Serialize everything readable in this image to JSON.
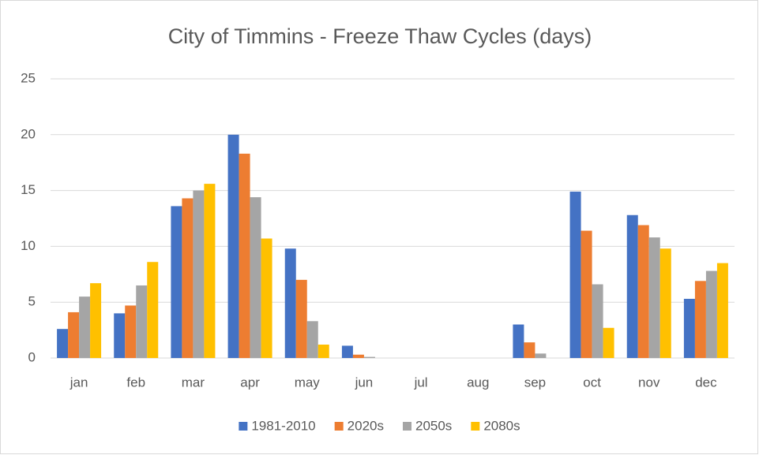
{
  "chart_data": {
    "type": "bar",
    "title": "City of Timmins -  Freeze Thaw Cycles (days)",
    "categories": [
      "jan",
      "feb",
      "mar",
      "apr",
      "may",
      "jun",
      "jul",
      "aug",
      "sep",
      "oct",
      "nov",
      "dec"
    ],
    "series": [
      {
        "name": "1981-2010",
        "color": "#4472c4",
        "values": [
          2.6,
          4.0,
          13.6,
          20.0,
          9.8,
          1.1,
          0,
          0,
          3.0,
          14.9,
          12.8,
          5.3
        ]
      },
      {
        "name": "2020s",
        "color": "#ed7d31",
        "values": [
          4.1,
          4.7,
          14.3,
          18.3,
          7.0,
          0.3,
          0,
          0,
          1.4,
          11.4,
          11.9,
          6.9
        ]
      },
      {
        "name": "2050s",
        "color": "#a5a5a5",
        "values": [
          5.5,
          6.5,
          15.0,
          14.4,
          3.3,
          0.1,
          0,
          0,
          0.4,
          6.6,
          10.8,
          7.8
        ]
      },
      {
        "name": "2080s",
        "color": "#ffc000",
        "values": [
          6.7,
          8.6,
          15.6,
          10.7,
          1.2,
          0,
          0,
          0,
          0,
          2.7,
          9.8,
          8.5
        ]
      }
    ],
    "ylim": [
      0,
      25
    ],
    "yticks": [
      0,
      5,
      10,
      15,
      20,
      25
    ],
    "grid": true,
    "legend": "bottom"
  }
}
